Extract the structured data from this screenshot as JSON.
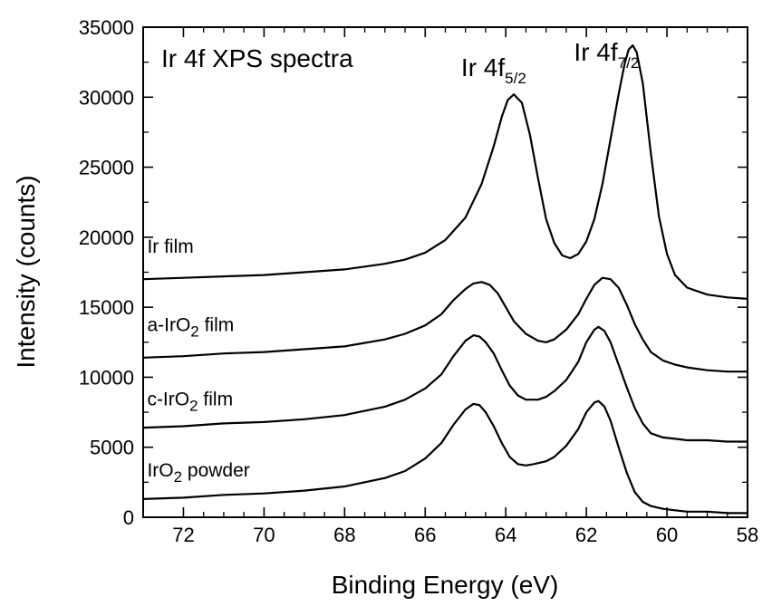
{
  "chart_data": {
    "type": "line",
    "title": "Ir 4f XPS spectra",
    "xlabel": "Binding Energy (eV)",
    "ylabel": "Intensity (counts)",
    "xlim": [
      73,
      58
    ],
    "ylim": [
      0,
      35000
    ],
    "x_reversed": true,
    "grid": false,
    "xticks": [
      72,
      70,
      68,
      66,
      64,
      62,
      60,
      58
    ],
    "xtick_labels": [
      "72",
      "70",
      "68",
      "66",
      "64",
      "62",
      "60",
      "58"
    ],
    "yticks": [
      0,
      5000,
      10000,
      15000,
      20000,
      25000,
      30000,
      35000
    ],
    "ytick_labels": [
      "0",
      "5000",
      "10000",
      "15000",
      "20000",
      "25000",
      "30000",
      "35000"
    ],
    "peak_labels": [
      {
        "main": "Ir 4f",
        "sub": "5/2",
        "x": 64.3,
        "y": 31500
      },
      {
        "main": "Ir 4f",
        "sub": "7/2",
        "x": 61.5,
        "y": 32600
      }
    ],
    "series": [
      {
        "name": "Ir film",
        "label_parts": [
          {
            "t": "Ir film",
            "sub": false
          }
        ],
        "label_pos": {
          "x": 72.9,
          "y": 18900
        },
        "x": [
          73,
          72,
          71,
          70,
          69,
          68,
          67,
          66.5,
          66,
          65.5,
          65,
          64.6,
          64.3,
          64.1,
          63.95,
          63.8,
          63.6,
          63.4,
          63.2,
          63,
          62.8,
          62.6,
          62.4,
          62.2,
          62,
          61.8,
          61.6,
          61.4,
          61.2,
          61.05,
          60.95,
          60.85,
          60.75,
          60.6,
          60.4,
          60.2,
          60,
          59.8,
          59.5,
          59,
          58.5,
          58
        ],
        "y": [
          17000,
          17100,
          17200,
          17300,
          17500,
          17700,
          18100,
          18400,
          18900,
          19800,
          21400,
          23800,
          26500,
          28600,
          29800,
          30200,
          29600,
          27300,
          24200,
          21300,
          19600,
          18700,
          18500,
          18800,
          19700,
          21300,
          23800,
          27000,
          30200,
          32400,
          33400,
          33700,
          33200,
          31000,
          26000,
          21500,
          18800,
          17300,
          16400,
          15900,
          15700,
          15600
        ]
      },
      {
        "name": "a-IrO2 film",
        "label_parts": [
          {
            "t": "a-IrO",
            "sub": false
          },
          {
            "t": "2",
            "sub": true
          },
          {
            "t": " film",
            "sub": false
          }
        ],
        "label_pos": {
          "x": 72.9,
          "y": 13300
        },
        "x": [
          73,
          72,
          71,
          70,
          69,
          68,
          67,
          66.5,
          66,
          65.6,
          65.3,
          65,
          64.8,
          64.6,
          64.4,
          64.2,
          64,
          63.8,
          63.5,
          63.2,
          63,
          62.8,
          62.5,
          62.2,
          62,
          61.8,
          61.6,
          61.4,
          61.2,
          61,
          60.8,
          60.6,
          60.4,
          60.1,
          59.8,
          59.5,
          59,
          58.5,
          58
        ],
        "y": [
          11400,
          11500,
          11700,
          11800,
          12000,
          12200,
          12700,
          13100,
          13700,
          14500,
          15500,
          16300,
          16700,
          16800,
          16600,
          16000,
          15000,
          14000,
          13100,
          12600,
          12500,
          12700,
          13400,
          14500,
          15600,
          16600,
          17100,
          17000,
          16400,
          15200,
          13800,
          12700,
          11800,
          11200,
          10900,
          10700,
          10500,
          10400,
          10400
        ]
      },
      {
        "name": "c-IrO2 film",
        "label_parts": [
          {
            "t": "c-IrO",
            "sub": false
          },
          {
            "t": "2",
            "sub": true
          },
          {
            "t": " film",
            "sub": false
          }
        ],
        "label_pos": {
          "x": 72.9,
          "y": 8000
        },
        "x": [
          73,
          72,
          71,
          70,
          69,
          68,
          67,
          66.5,
          66,
          65.6,
          65.3,
          65,
          64.8,
          64.65,
          64.5,
          64.3,
          64.1,
          63.9,
          63.7,
          63.5,
          63.2,
          63,
          62.8,
          62.5,
          62.2,
          62,
          61.8,
          61.7,
          61.55,
          61.4,
          61.2,
          61,
          60.8,
          60.6,
          60.4,
          60.1,
          59.8,
          59.5,
          59,
          58.5,
          58
        ],
        "y": [
          6400,
          6500,
          6700,
          6800,
          7000,
          7300,
          7900,
          8400,
          9200,
          10200,
          11500,
          12600,
          13000,
          12900,
          12500,
          11700,
          10500,
          9400,
          8700,
          8400,
          8400,
          8600,
          9000,
          9800,
          11100,
          12500,
          13400,
          13600,
          13300,
          12500,
          10900,
          9300,
          7800,
          6700,
          6000,
          5700,
          5600,
          5500,
          5500,
          5400,
          5400
        ]
      },
      {
        "name": "IrO2 powder",
        "label_parts": [
          {
            "t": "IrO",
            "sub": false
          },
          {
            "t": "2",
            "sub": true
          },
          {
            "t": " powder",
            "sub": false
          }
        ],
        "label_pos": {
          "x": 72.9,
          "y": 2900
        },
        "x": [
          73,
          72,
          71,
          70,
          69,
          68,
          67,
          66.5,
          66,
          65.6,
          65.3,
          65,
          64.8,
          64.65,
          64.5,
          64.3,
          64.1,
          63.9,
          63.7,
          63.5,
          63.3,
          63,
          62.8,
          62.5,
          62.2,
          62,
          61.8,
          61.7,
          61.55,
          61.4,
          61.2,
          61,
          60.8,
          60.6,
          60.4,
          60.1,
          59.8,
          59.5,
          59,
          58.5,
          58
        ],
        "y": [
          1300,
          1400,
          1600,
          1700,
          1900,
          2200,
          2800,
          3300,
          4200,
          5300,
          6600,
          7700,
          8100,
          8000,
          7500,
          6500,
          5300,
          4300,
          3800,
          3700,
          3800,
          4000,
          4300,
          5100,
          6300,
          7500,
          8200,
          8300,
          7900,
          6900,
          5000,
          3200,
          1800,
          1100,
          800,
          600,
          500,
          400,
          400,
          300,
          300
        ]
      }
    ]
  }
}
